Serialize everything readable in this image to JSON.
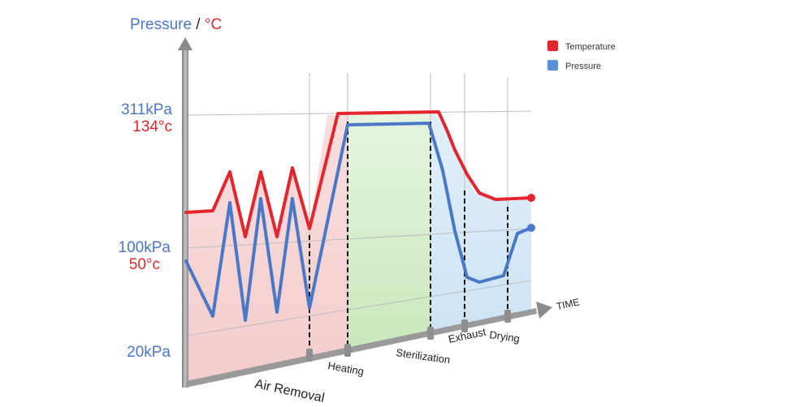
{
  "chart_data": {
    "type": "line",
    "title_pressure": "Pressure",
    "title_sep": " / ",
    "title_temp": "°C",
    "x_axis_label": "TIME",
    "y_ticks": [
      {
        "pressure": "311kPa",
        "temp": "134°c"
      },
      {
        "pressure": "100kPa",
        "temp": "50°c"
      },
      {
        "pressure": "20kPa",
        "temp": ""
      }
    ],
    "phases": [
      "Air Removal",
      "Heating",
      "Sterilization",
      "Exhaust",
      "Drying"
    ],
    "legend": [
      {
        "label": "Temperature",
        "color": "#e3262e"
      },
      {
        "label": "Pressure",
        "color": "#4a78c8"
      }
    ],
    "colors": {
      "temperature": "#e3262e",
      "pressure": "#4a78c8",
      "air_removal_fill": "#f6d3d3",
      "heating_fill": "#d2ecc8",
      "cooling_fill": "#d3e8f6"
    }
  }
}
